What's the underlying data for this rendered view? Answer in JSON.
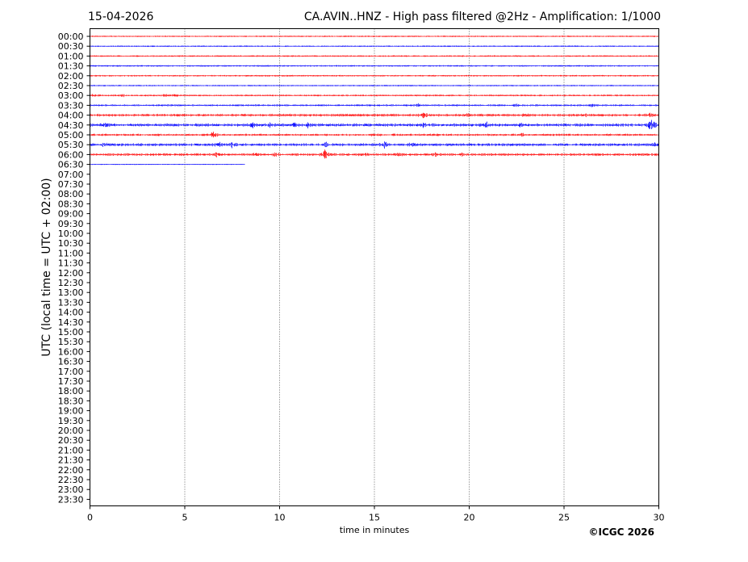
{
  "header": {
    "date": "15-04-2026",
    "title": "CA.AVIN..HNZ - High pass filtered @2Hz - Amplification: 1/1000"
  },
  "footer": {
    "copyright": "©ICGC 2026"
  },
  "chart_data": {
    "type": "line",
    "title": "CA.AVIN..HNZ - High pass filtered @2Hz - Amplification: 1/1000",
    "xlabel": "time in minutes",
    "ylabel": "UTC (local time = UTC + 02:00)",
    "xlim": [
      0,
      30
    ],
    "xticks": [
      0,
      5,
      10,
      15,
      20,
      25,
      30
    ],
    "x_grid": "dotted vertical lines at 5, 10, 15, 20, 25",
    "row_labels": [
      "00:00",
      "00:30",
      "01:00",
      "01:30",
      "02:00",
      "02:30",
      "03:00",
      "03:30",
      "04:00",
      "04:30",
      "05:00",
      "05:30",
      "06:00",
      "06:30",
      "07:00",
      "07:30",
      "08:00",
      "08:30",
      "09:00",
      "09:30",
      "10:00",
      "10:30",
      "11:00",
      "11:30",
      "12:00",
      "12:30",
      "13:00",
      "13:30",
      "14:00",
      "14:30",
      "15:00",
      "15:30",
      "16:00",
      "16:30",
      "17:00",
      "17:30",
      "18:00",
      "18:30",
      "19:00",
      "19:30",
      "20:00",
      "20:30",
      "21:00",
      "21:30",
      "22:00",
      "22:30",
      "23:00",
      "23:30"
    ],
    "colors": {
      "even_rows": "#ff0000",
      "odd_rows": "#0000ff"
    },
    "series": [
      {
        "row": "00:00",
        "color": "#ff0000",
        "end": 30,
        "noise": 0.5,
        "events": []
      },
      {
        "row": "00:30",
        "color": "#0000ff",
        "end": 30,
        "noise": 0.5,
        "events": []
      },
      {
        "row": "01:00",
        "color": "#ff0000",
        "end": 30,
        "noise": 0.6,
        "events": []
      },
      {
        "row": "01:30",
        "color": "#0000ff",
        "end": 30,
        "noise": 0.6,
        "events": []
      },
      {
        "row": "02:00",
        "color": "#ff0000",
        "end": 30,
        "noise": 0.6,
        "events": []
      },
      {
        "row": "02:30",
        "color": "#0000ff",
        "end": 30,
        "noise": 0.5,
        "events": []
      },
      {
        "row": "03:00",
        "color": "#ff0000",
        "end": 30,
        "noise": 0.7,
        "events": [
          [
            0.2,
            1.5
          ],
          [
            1.8,
            2
          ],
          [
            4.0,
            2
          ],
          [
            4.4,
            2.5
          ]
        ]
      },
      {
        "row": "03:30",
        "color": "#0000ff",
        "end": 30,
        "noise": 0.8,
        "events": [
          [
            17.3,
            1.5
          ],
          [
            22.5,
            1.5
          ],
          [
            26.5,
            1.5
          ]
        ]
      },
      {
        "row": "04:00",
        "color": "#ff0000",
        "end": 30,
        "noise": 1.2,
        "events": [
          [
            17.6,
            5
          ],
          [
            20.0,
            2
          ],
          [
            23.0,
            2
          ],
          [
            26.2,
            2
          ],
          [
            29.5,
            2.5
          ]
        ]
      },
      {
        "row": "04:30",
        "color": "#0000ff",
        "end": 30,
        "noise": 1.6,
        "events": [
          [
            0.8,
            2.5
          ],
          [
            8.6,
            3
          ],
          [
            9.5,
            3
          ],
          [
            10.8,
            3
          ],
          [
            11.5,
            3
          ],
          [
            17.6,
            3
          ],
          [
            20.9,
            3
          ],
          [
            22.7,
            3
          ],
          [
            29.6,
            10
          ]
        ]
      },
      {
        "row": "05:00",
        "color": "#ff0000",
        "end": 30,
        "noise": 1.0,
        "events": [
          [
            6.5,
            5
          ],
          [
            15.0,
            2
          ],
          [
            22.8,
            2
          ]
        ]
      },
      {
        "row": "05:30",
        "color": "#0000ff",
        "end": 30,
        "noise": 1.4,
        "events": [
          [
            0.7,
            2
          ],
          [
            6.8,
            4
          ],
          [
            7.5,
            3
          ],
          [
            12.5,
            2.5
          ],
          [
            15.5,
            6
          ],
          [
            17.0,
            2
          ],
          [
            29.8,
            2
          ]
        ]
      },
      {
        "row": "06:00",
        "color": "#ff0000",
        "end": 30,
        "noise": 1.2,
        "events": [
          [
            6.7,
            3
          ],
          [
            8.7,
            2.5
          ],
          [
            9.8,
            2.5
          ],
          [
            12.4,
            6
          ],
          [
            14.5,
            2
          ],
          [
            16.3,
            2
          ],
          [
            18.2,
            2
          ],
          [
            19.6,
            2
          ]
        ]
      },
      {
        "row": "06:30",
        "color": "#0000ff",
        "end": 8.2,
        "noise": 0.3,
        "events": []
      }
    ]
  }
}
